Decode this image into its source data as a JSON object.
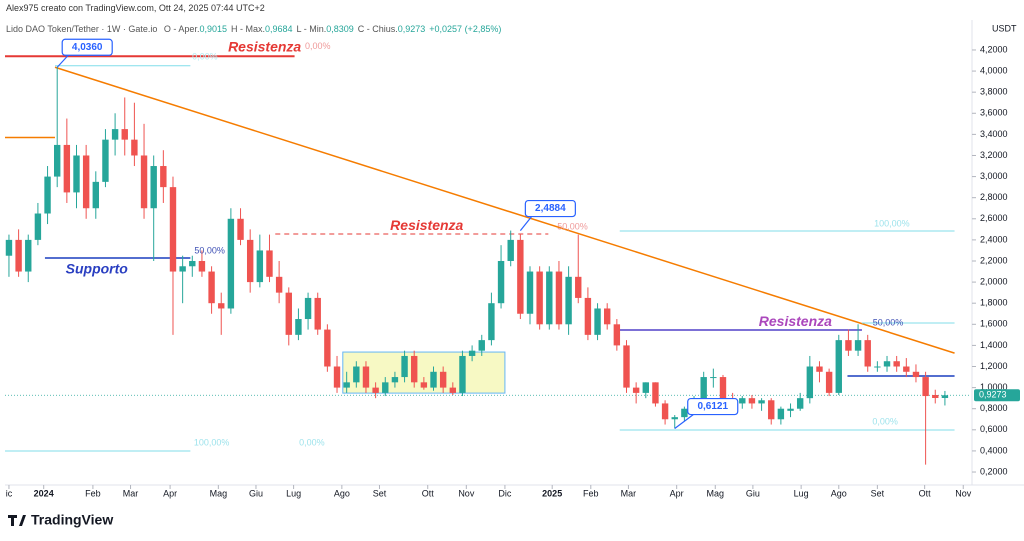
{
  "header": {
    "credit": "Alex975 creato con TradingView.com, Ott 24, 2025 07:44 UTC+2",
    "symbol": "Lido DAO Token/Tether · 1W · Gate.io",
    "ohlc": [
      {
        "label": "O - Aper.",
        "value": "0,9015"
      },
      {
        "label": "H - Max.",
        "value": "0,9684"
      },
      {
        "label": "L - Min.",
        "value": "0,8309"
      },
      {
        "label": "C - Chius.",
        "value": "0,9273"
      }
    ],
    "change": "+0,0257 (+2,85%)"
  },
  "brand": "TradingView",
  "chart_data": {
    "type": "candlestick",
    "currency": "USDT",
    "up_color": "#26a69a",
    "down_color": "#ef5350",
    "open": [
      2.25,
      2.4,
      2.1,
      2.4,
      2.65,
      3.0,
      3.3,
      2.85,
      3.2,
      2.7,
      2.95,
      3.35,
      3.45,
      3.35,
      3.2,
      2.7,
      3.1,
      2.9,
      2.1,
      2.15,
      2.2,
      2.1,
      1.8,
      1.75,
      2.6,
      2.4,
      2.0,
      2.3,
      2.05,
      1.9,
      1.5,
      1.65,
      1.85,
      1.55,
      1.2,
      1.0,
      1.05,
      1.2,
      1.0,
      0.95,
      1.05,
      1.1,
      1.3,
      1.05,
      1.0,
      1.15,
      1.0,
      0.95,
      1.3,
      1.35,
      1.45,
      1.8,
      2.2,
      2.4,
      1.7,
      2.1,
      1.6,
      2.1,
      1.6,
      2.05,
      1.85,
      1.5,
      1.75,
      1.6,
      1.4,
      1.0,
      0.95,
      1.05,
      0.85,
      0.7,
      0.72,
      0.8,
      0.9,
      1.1,
      1.1,
      0.9,
      0.85,
      0.9,
      0.85,
      0.88,
      0.7,
      0.78,
      0.8,
      0.9,
      1.2,
      1.15,
      0.95,
      1.45,
      1.35,
      1.45,
      1.2,
      1.2,
      1.25,
      1.2,
      1.15,
      1.1,
      0.93,
      0.9015
    ],
    "high": [
      2.45,
      2.5,
      2.45,
      2.75,
      3.1,
      4.036,
      3.55,
      3.3,
      3.3,
      3.05,
      3.45,
      3.6,
      3.75,
      3.7,
      3.5,
      3.2,
      3.25,
      3.0,
      2.25,
      2.25,
      2.3,
      2.15,
      1.9,
      2.7,
      2.7,
      2.5,
      2.45,
      2.45,
      2.2,
      1.95,
      1.75,
      1.9,
      1.9,
      1.6,
      1.3,
      1.15,
      1.25,
      1.25,
      1.05,
      1.1,
      1.15,
      1.35,
      1.35,
      1.1,
      1.2,
      1.2,
      1.05,
      1.35,
      1.4,
      1.5,
      1.9,
      2.35,
      2.4884,
      2.45,
      2.15,
      2.15,
      2.15,
      2.2,
      2.15,
      2.45,
      1.95,
      1.8,
      1.8,
      1.65,
      1.45,
      1.05,
      1.05,
      1.05,
      0.88,
      0.74,
      0.82,
      0.92,
      1.15,
      1.18,
      1.12,
      0.95,
      0.92,
      0.93,
      0.9,
      0.9,
      0.82,
      0.85,
      0.95,
      1.3,
      1.25,
      1.18,
      1.5,
      1.55,
      1.6,
      1.5,
      1.25,
      1.3,
      1.3,
      1.28,
      1.22,
      1.15,
      0.98,
      0.9684
    ],
    "low": [
      2.05,
      2.05,
      2.0,
      2.35,
      2.55,
      2.9,
      2.75,
      2.7,
      2.6,
      2.6,
      2.9,
      3.2,
      3.2,
      3.1,
      2.6,
      2.2,
      2.75,
      1.5,
      1.8,
      2.05,
      2.05,
      1.7,
      1.5,
      1.7,
      2.35,
      1.9,
      1.95,
      2.0,
      1.8,
      1.4,
      1.45,
      1.55,
      1.5,
      1.15,
      0.95,
      0.95,
      1.0,
      0.95,
      0.9,
      0.92,
      1.0,
      1.05,
      1.0,
      0.98,
      0.97,
      0.95,
      0.93,
      0.92,
      1.25,
      1.3,
      1.4,
      1.75,
      2.15,
      1.65,
      1.6,
      1.55,
      1.55,
      1.55,
      1.5,
      1.8,
      1.45,
      1.45,
      1.55,
      1.35,
      0.95,
      0.85,
      0.9,
      0.82,
      0.65,
      0.6121,
      0.68,
      0.75,
      0.85,
      1.0,
      0.85,
      0.8,
      0.8,
      0.8,
      0.78,
      0.65,
      0.65,
      0.72,
      0.78,
      0.85,
      1.05,
      0.92,
      0.93,
      1.3,
      1.3,
      1.15,
      1.15,
      1.15,
      1.15,
      1.1,
      1.05,
      0.27,
      0.85,
      0.8309
    ],
    "close": [
      2.4,
      2.1,
      2.4,
      2.65,
      3.0,
      3.3,
      2.85,
      3.2,
      2.7,
      2.95,
      3.35,
      3.45,
      3.35,
      3.2,
      2.7,
      3.1,
      2.9,
      2.1,
      2.15,
      2.2,
      2.1,
      1.8,
      1.75,
      2.6,
      2.4,
      2.0,
      2.3,
      2.05,
      1.9,
      1.5,
      1.65,
      1.85,
      1.55,
      1.2,
      1.0,
      1.05,
      1.2,
      1.0,
      0.95,
      1.05,
      1.1,
      1.3,
      1.05,
      1.0,
      1.15,
      1.0,
      0.95,
      1.3,
      1.35,
      1.45,
      1.8,
      2.2,
      2.4,
      1.7,
      2.1,
      1.6,
      2.1,
      1.6,
      2.05,
      1.85,
      1.5,
      1.75,
      1.6,
      1.4,
      1.0,
      0.95,
      1.05,
      0.85,
      0.7,
      0.72,
      0.8,
      0.9,
      1.1,
      1.1,
      0.9,
      0.85,
      0.9,
      0.85,
      0.88,
      0.7,
      0.8,
      0.8,
      0.9,
      1.2,
      1.15,
      0.95,
      1.45,
      1.35,
      1.45,
      1.2,
      1.2,
      1.25,
      1.2,
      1.15,
      1.1,
      0.92,
      0.9015,
      0.9273
    ],
    "last_price": {
      "value": 0.9273,
      "label": "0,9273"
    },
    "xlim": [
      -0.41,
      99.6
    ],
    "xticks": [
      {
        "value": 0,
        "label": "ic"
      },
      {
        "value": 3.6,
        "label": "2024"
      },
      {
        "value": 8.7,
        "label": "Feb"
      },
      {
        "value": 12.6,
        "label": "Mar"
      },
      {
        "value": 16.7,
        "label": "Apr"
      },
      {
        "value": 21.7,
        "label": "Mag"
      },
      {
        "value": 25.6,
        "label": "Giu"
      },
      {
        "value": 29.5,
        "label": "Lug"
      },
      {
        "value": 34.5,
        "label": "Ago"
      },
      {
        "value": 38.4,
        "label": "Set"
      },
      {
        "value": 43.4,
        "label": "Ott"
      },
      {
        "value": 47.4,
        "label": "Nov"
      },
      {
        "value": 51.4,
        "label": "Dic"
      },
      {
        "value": 56.3,
        "label": "2025"
      },
      {
        "value": 60.3,
        "label": "Feb"
      },
      {
        "value": 64.2,
        "label": "Mar"
      },
      {
        "value": 69.2,
        "label": "Apr"
      },
      {
        "value": 73.2,
        "label": "Mag"
      },
      {
        "value": 77.1,
        "label": "Giu"
      },
      {
        "value": 82.1,
        "label": "Lug"
      },
      {
        "value": 86.0,
        "label": "Ago"
      },
      {
        "value": 90.0,
        "label": "Set"
      },
      {
        "value": 94.9,
        "label": "Ott"
      },
      {
        "value": 98.9,
        "label": "Nov"
      }
    ],
    "ylim": [
      0.077,
      4.484
    ],
    "yticks": [
      {
        "value": 4.2,
        "label": "4,2000"
      },
      {
        "value": 4.0,
        "label": "4,0000"
      },
      {
        "value": 3.8,
        "label": "3,8000"
      },
      {
        "value": 3.6,
        "label": "3,6000"
      },
      {
        "value": 3.4,
        "label": "3,4000"
      },
      {
        "value": 3.2,
        "label": "3,2000"
      },
      {
        "value": 3.0,
        "label": "3,0000"
      },
      {
        "value": 2.8,
        "label": "2,8000"
      },
      {
        "value": 2.6,
        "label": "2,6000"
      },
      {
        "value": 2.4,
        "label": "2,4000"
      },
      {
        "value": 2.2,
        "label": "2,2000"
      },
      {
        "value": 2.0,
        "label": "2,0000"
      },
      {
        "value": 1.8,
        "label": "1,8000"
      },
      {
        "value": 1.6,
        "label": "1,6000"
      },
      {
        "value": 1.4,
        "label": "1,4000"
      },
      {
        "value": 1.2,
        "label": "1,2000"
      },
      {
        "value": 1.0,
        "label": "1,0000"
      },
      {
        "value": 0.8,
        "label": "0,8000"
      },
      {
        "value": 0.6,
        "label": "0,6000"
      },
      {
        "value": 0.4,
        "label": "0,4000"
      },
      {
        "value": 0.2,
        "label": "0,2000"
      }
    ],
    "drawings": [
      {
        "kind": "box",
        "x": [
          34.6,
          51.4
        ],
        "y": [
          1.337,
          0.948
        ],
        "color": "#64b5f6",
        "fill": "#f7f9c4"
      },
      {
        "kind": "line",
        "x": [
          -0.41,
          29.6
        ],
        "y": [
          4.14,
          4.14
        ],
        "color": "#e53935",
        "width": 2
      },
      {
        "kind": "line",
        "x": [
          -0.41,
          4.77
        ],
        "y": [
          3.37,
          3.37
        ],
        "color": "#f57c00",
        "width": 1.5
      },
      {
        "kind": "line",
        "x": [
          4.77,
          98
        ],
        "y": [
          4.036,
          1.327
        ],
        "color": "#f57c00",
        "width": 1.5
      },
      {
        "kind": "line",
        "x": [
          4.77,
          18.8
        ],
        "y": [
          4.05,
          4.05
        ],
        "color": "#80deea",
        "width": 1
      },
      {
        "kind": "line",
        "x": [
          3.73,
          18.8
        ],
        "y": [
          2.228,
          2.228
        ],
        "color": "#1a3fbf",
        "width": 1.5
      },
      {
        "kind": "line",
        "x": [
          -0.41,
          18.8
        ],
        "y": [
          0.399,
          0.399
        ],
        "color": "#80deea",
        "width": 1
      },
      {
        "kind": "line",
        "x": [
          27.6,
          55.9
        ],
        "y": [
          2.456,
          2.456
        ],
        "color": "#e53935",
        "width": 1,
        "dash": true
      },
      {
        "kind": "line",
        "x": [
          63.3,
          98
        ],
        "y": [
          2.484,
          2.484
        ],
        "color": "#80deea",
        "width": 1
      },
      {
        "kind": "line",
        "x": [
          63.3,
          88.4
        ],
        "y": [
          1.546,
          1.546
        ],
        "color": "#5041c8",
        "width": 1.5
      },
      {
        "kind": "line",
        "x": [
          88.4,
          98
        ],
        "y": [
          1.612,
          1.612
        ],
        "color": "#80deea",
        "width": 1
      },
      {
        "kind": "line",
        "x": [
          86.9,
          98
        ],
        "y": [
          1.11,
          1.11
        ],
        "color": "#1a3fbf",
        "width": 1.5
      },
      {
        "kind": "line",
        "x": [
          63.3,
          98
        ],
        "y": [
          0.598,
          0.598
        ],
        "color": "#80deea",
        "width": 1
      }
    ],
    "annotations": [
      {
        "text": "Resistenza",
        "at": [
          26.5,
          4.219
        ],
        "color": "#e53935",
        "big": true
      },
      {
        "text": "0,00%",
        "at": [
          32,
          4.23
        ],
        "color": "#ef9a9a"
      },
      {
        "text": "0,00%",
        "at": [
          20.3,
          4.13
        ],
        "color": "#b2ebf2"
      },
      {
        "text": "Supporto",
        "at": [
          9.1,
          2.115
        ],
        "color": "#2a3fc1",
        "big": true
      },
      {
        "text": "50,00%",
        "at": [
          20.8,
          2.294
        ],
        "color": "#3f51b5"
      },
      {
        "text": "100,00%",
        "at": [
          21,
          0.474
        ],
        "color": "#9ee3ec"
      },
      {
        "text": "0,00%",
        "at": [
          31.4,
          0.474
        ],
        "color": "#9ee3ec"
      },
      {
        "text": "Resistenza",
        "at": [
          43.3,
          2.531
        ],
        "color": "#e53935",
        "big": true
      },
      {
        "text": "50,00%",
        "at": [
          58.4,
          2.522
        ],
        "color": "#ef9a9a"
      },
      {
        "text": "100,00%",
        "at": [
          91.5,
          2.55
        ],
        "color": "#9ee3ec"
      },
      {
        "text": "Resistenza",
        "at": [
          81.5,
          1.621
        ],
        "color": "#ab47bc",
        "big": true
      },
      {
        "text": "50,00%",
        "at": [
          91.1,
          1.612
        ],
        "color": "#3f51b5"
      },
      {
        "text": "0,00%",
        "at": [
          90.8,
          0.674
        ],
        "color": "#9ee3ec"
      }
    ],
    "callouts": [
      {
        "value": 4.036,
        "label": "4,0360",
        "at": 5
      },
      {
        "value": 2.4884,
        "label": "2,4884",
        "at": 53
      },
      {
        "value": 0.6121,
        "label": "0,6121",
        "at": 69
      }
    ]
  }
}
